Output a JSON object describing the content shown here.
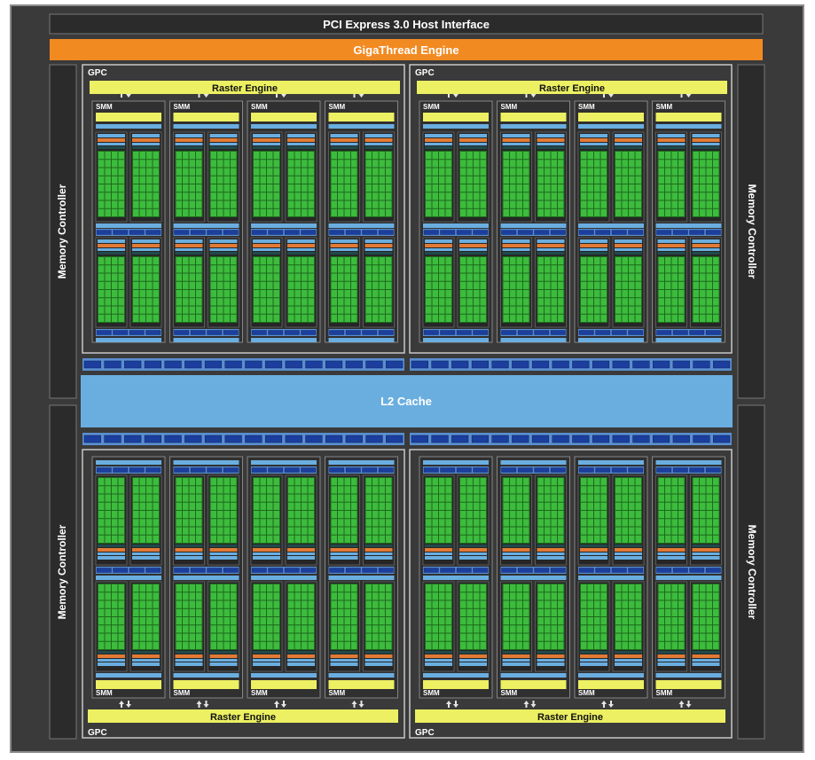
{
  "host_interface": "PCI Express 3.0 Host Interface",
  "gigathread": "GigaThread Engine",
  "l2_cache": "L2 Cache",
  "memory_controller": "Memory Controller",
  "gpc_label": "GPC",
  "raster_engine": "Raster Engine",
  "smm_label": "SMM",
  "colors": {
    "die_background": "#3a3a3a",
    "bar_background": "#2e2e2e",
    "gigathread": "#f28a22",
    "raster": "#ecf062",
    "l2_cache": "#6aaee0",
    "cuda_core": "#3dbb3d",
    "cuda_core_border": "#1d6a1d",
    "dispatch": "#e17a35",
    "register_file": "#6aaee0",
    "blue_unit": "#1c3f9e"
  }
}
